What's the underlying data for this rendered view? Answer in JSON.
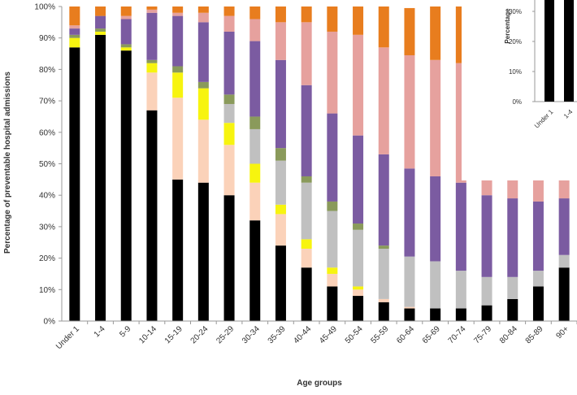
{
  "chart_data": [
    {
      "type": "bar",
      "stacked": true,
      "xlabel": "Age groups",
      "ylabel": "Percentage of preventable hospital admissions",
      "ylim": [
        0,
        100
      ],
      "ytick_labels": [
        "0%",
        "10%",
        "20%",
        "30%",
        "40%",
        "50%",
        "60%",
        "70%",
        "80%",
        "90%",
        "100%"
      ],
      "grid": false,
      "categories": [
        "Under 1",
        "1-4",
        "5-9",
        "10-14",
        "15-19",
        "20-24",
        "25-29",
        "30-34",
        "35-39",
        "40-44",
        "45-49",
        "50-54",
        "55-59",
        "60-64",
        "65-69",
        "70-74",
        "75-79",
        "80-84",
        "85-89",
        "90+"
      ],
      "series": [
        {
          "color": "#000000",
          "values": [
            87,
            91,
            86,
            67,
            45,
            44,
            40,
            32,
            24,
            17,
            11,
            8,
            6,
            4,
            4,
            4,
            5,
            7,
            11,
            17
          ]
        },
        {
          "color": "#fbd2b9",
          "values": [
            0,
            0,
            0,
            12,
            26,
            20,
            16,
            12,
            10,
            6,
            4,
            2,
            1,
            0.5,
            0,
            0,
            0,
            0,
            0,
            0
          ]
        },
        {
          "color": "#f7f40f",
          "values": [
            3,
            1,
            1,
            3,
            8,
            10,
            7,
            6,
            3,
            3,
            2,
            1,
            0,
            0,
            0,
            0,
            0,
            0,
            0,
            0
          ]
        },
        {
          "color": "#c0c0c0",
          "values": [
            0,
            0,
            0,
            0,
            0,
            0,
            6,
            11,
            14,
            18,
            18,
            18,
            16,
            16,
            15,
            12,
            9,
            7,
            5,
            4
          ]
        },
        {
          "color": "#8a9a5b",
          "values": [
            1,
            1,
            1,
            1,
            2,
            2,
            3,
            4,
            4,
            2,
            3,
            2,
            1,
            0,
            0,
            0,
            0,
            0,
            0,
            0
          ]
        },
        {
          "color": "#7b5ba1",
          "values": [
            2,
            4,
            8,
            15,
            16,
            19,
            20,
            24,
            28,
            29,
            28,
            28,
            29,
            28,
            27,
            28,
            26,
            25,
            22,
            18
          ]
        },
        {
          "color": "#e6a19e",
          "values": [
            1,
            0,
            1,
            1,
            1,
            3,
            5,
            7,
            12,
            20,
            26,
            32,
            34,
            36,
            37,
            38,
            39,
            40,
            41,
            39
          ]
        },
        {
          "color": "#e87d1e",
          "values": [
            6,
            3,
            3,
            1,
            2,
            2,
            3,
            4,
            5,
            5,
            8,
            9,
            13,
            15,
            17,
            18,
            21,
            21,
            21,
            22
          ]
        }
      ]
    },
    {
      "type": "bar",
      "partial": true,
      "ylabel": "Percentage",
      "ytick_labels": [
        "0%",
        "10%",
        "20%",
        "30%"
      ],
      "categories": [
        "Under 1",
        "1-4"
      ],
      "values": [
        40,
        40
      ]
    }
  ]
}
